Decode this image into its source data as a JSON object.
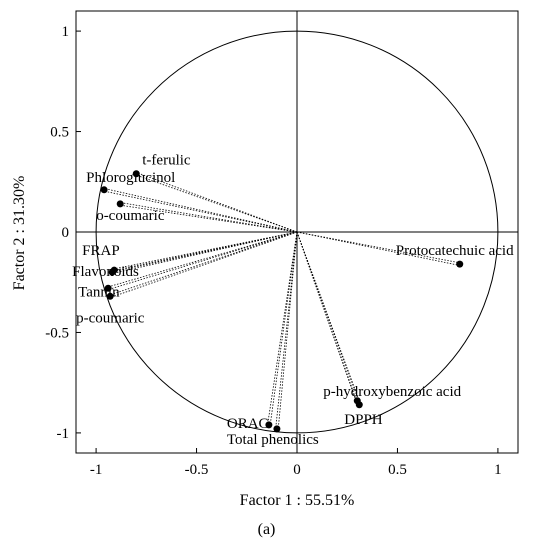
{
  "chart_data": {
    "type": "scatter",
    "xlabel": "Factor 1 : 55.51%",
    "ylabel": "Factor 2 : 31.30%",
    "xlim": [
      -1.1,
      1.1
    ],
    "ylim": [
      -1.1,
      1.1
    ],
    "x_ticks": [
      "-1",
      "-0.5",
      "0",
      "0.5",
      "1"
    ],
    "y_ticks": [
      "1",
      "0.5",
      "0",
      "-0.5",
      "-1"
    ],
    "unit_circle": true,
    "points": [
      {
        "label": "t-ferulic",
        "x": -0.8,
        "y": 0.29
      },
      {
        "label": "Phloroglucinol",
        "x": -0.96,
        "y": 0.21
      },
      {
        "label": "o-coumaric",
        "x": -0.88,
        "y": 0.14
      },
      {
        "label": "FRAP",
        "x": -0.91,
        "y": -0.19
      },
      {
        "label": "Flavonoids",
        "x": -0.92,
        "y": -0.2
      },
      {
        "label": "Tannin",
        "x": -0.94,
        "y": -0.28
      },
      {
        "label": "p-coumaric",
        "x": -0.93,
        "y": -0.32
      },
      {
        "label": "Protocatechuic acid",
        "x": 0.81,
        "y": -0.16
      },
      {
        "label": "p-hydroxybenzoic acid",
        "x": 0.3,
        "y": -0.84
      },
      {
        "label": "DPPH",
        "x": 0.31,
        "y": -0.86
      },
      {
        "label": "ORAC",
        "x": -0.14,
        "y": -0.96
      },
      {
        "label": "Total phenolics",
        "x": -0.1,
        "y": -0.98
      }
    ]
  },
  "panel_label": "(a)"
}
